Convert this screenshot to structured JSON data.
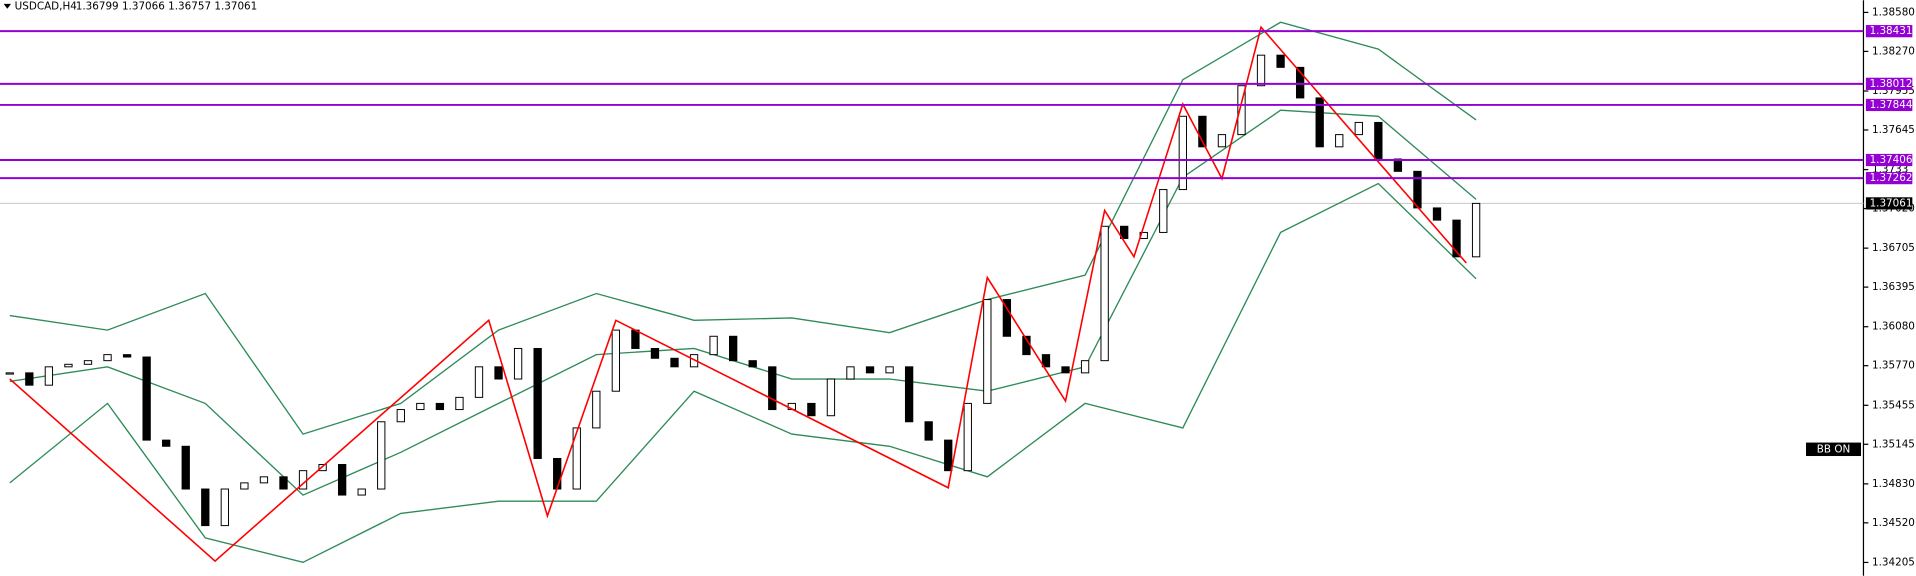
{
  "header": {
    "symbol": "USDCAD,H4",
    "prices": "1.36799 1.37066 1.36757 1.37061"
  },
  "chart_data": {
    "type": "candlestick",
    "ylim": [
      1.34099,
      1.38677
    ],
    "yticks": [
      {
        "value": 1.3858,
        "label": "1.38580"
      },
      {
        "value": 1.3827,
        "label": "1.38270"
      },
      1.37955,
      1.37645,
      1.3733,
      {
        "value": 1.3702,
        "label": "1.37020"
      },
      1.36705,
      1.36395,
      {
        "value": 1.3608,
        "label": "1.36080"
      },
      {
        "value": 1.3577,
        "label": "1.35770"
      },
      1.35455,
      1.35145,
      {
        "value": 1.3483,
        "label": "1.34830"
      },
      {
        "value": 1.3452,
        "label": "1.34520"
      },
      1.34205
    ],
    "close": [
      1.35713,
      1.35615,
      1.35761,
      1.35781,
      1.3581,
      1.35858,
      1.35839,
      1.35178,
      1.35129,
      1.34789,
      1.34498,
      1.34789,
      1.34838,
      1.34886,
      1.34789,
      1.34935,
      1.34984,
      1.34741,
      1.34789,
      1.35324,
      1.35421,
      1.3547,
      1.35421,
      1.35518,
      1.35761,
      1.35664,
      1.35907,
      1.35032,
      1.34789,
      1.35275,
      1.35567,
      1.36053,
      1.35907,
      1.35829,
      1.35761,
      1.35858,
      1.36004,
      1.3581,
      1.35761,
      1.35421,
      1.3547,
      1.35372,
      1.35664,
      1.35761,
      1.35713,
      1.35761,
      1.35324,
      1.35178,
      1.34935,
      1.3547,
      1.36296,
      1.36004,
      1.35858,
      1.35761,
      1.35713,
      1.3581,
      1.36879,
      1.36782,
      1.3683,
      1.37171,
      1.37754,
      1.37511,
      1.37608,
      1.37997,
      1.3824,
      1.38143,
      1.379,
      1.37511,
      1.37608,
      1.37705,
      1.37414,
      1.37316,
      1.37025,
      1.36928,
      1.36636,
      1.37061
    ],
    "zigzag": {
      "color": "#ff0000",
      "x": [
        0,
        10.5,
        24.5,
        27.5,
        31,
        48,
        50,
        54,
        56,
        57.5,
        60,
        62,
        64,
        74.5
      ],
      "values": [
        1.35664,
        1.34216,
        1.36131,
        1.34575,
        1.36131,
        1.34799,
        1.36471,
        1.35489,
        1.37005,
        1.36636,
        1.37851,
        1.37258,
        1.38463,
        1.36587
      ]
    },
    "bands": {
      "color": "#2e8b57",
      "x": [
        0,
        5,
        10,
        15,
        20,
        25,
        30,
        35,
        40,
        45,
        50,
        55,
        60,
        65,
        70,
        75
      ],
      "upper": [
        1.36169,
        1.36053,
        1.36344,
        1.35226,
        1.3547,
        1.36053,
        1.36344,
        1.36131,
        1.3615,
        1.36033,
        1.36296,
        1.3649,
        1.38045,
        1.38502,
        1.38288,
        1.37725
      ],
      "middle": [
        1.35645,
        1.35761,
        1.3547,
        1.34741,
        1.35081,
        1.3547,
        1.35858,
        1.35907,
        1.35664,
        1.35664,
        1.35567,
        1.35761,
        1.37268,
        1.37802,
        1.37754,
        1.37093
      ],
      "lower": [
        1.34838,
        1.3547,
        1.344,
        1.34206,
        1.34595,
        1.34692,
        1.34692,
        1.35567,
        1.35226,
        1.35129,
        1.34886,
        1.3547,
        1.35275,
        1.3683,
        1.37219,
        1.36461
      ]
    },
    "levels": {
      "color": "#9400d3",
      "values": [
        1.38431,
        1.38012,
        1.37844,
        1.37406,
        1.37262
      ]
    },
    "last_price": 1.37061,
    "indicator_label": "BB ON"
  }
}
